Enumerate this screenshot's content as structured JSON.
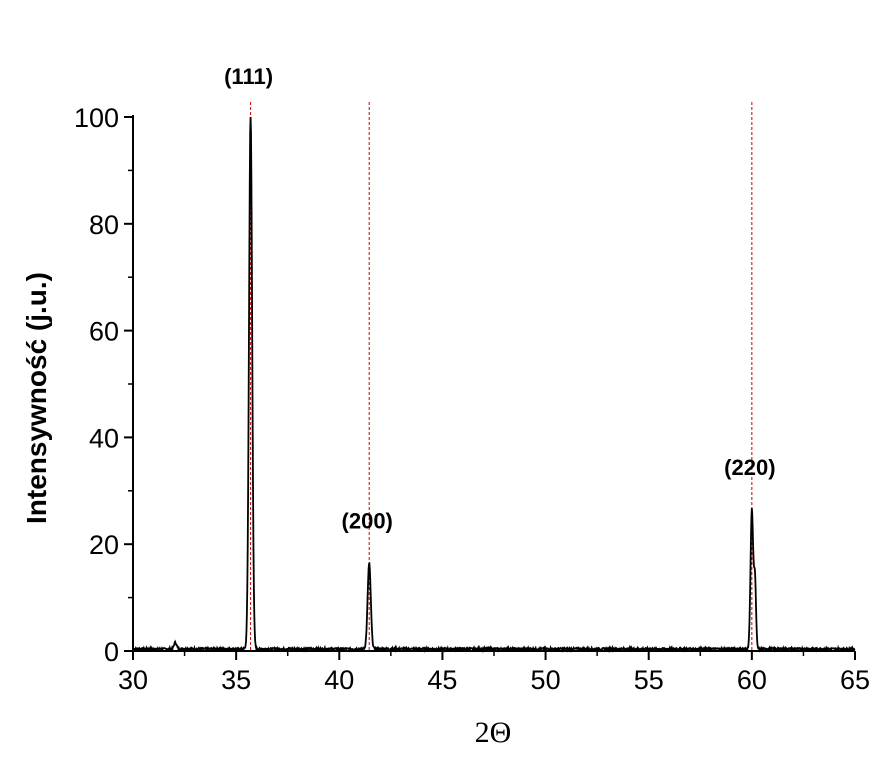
{
  "chart_data": {
    "type": "line",
    "xlabel": "2Θ",
    "ylabel": "Intensywność (j.u.)",
    "xlim": [
      30,
      65
    ],
    "ylim": [
      0,
      100
    ],
    "x_ticks": [
      "30",
      "35",
      "40",
      "45",
      "50",
      "55",
      "60",
      "65"
    ],
    "y_ticks": [
      "0",
      "20",
      "40",
      "60",
      "80",
      "100"
    ],
    "grid": false,
    "line_color": "#000000",
    "reference_line_color": "#cc0000",
    "peaks": [
      {
        "label": "(111)",
        "x": 35.7,
        "y": 100,
        "fwhm": 0.18
      },
      {
        "label": "(200)",
        "x": 41.45,
        "y": 16,
        "fwhm": 0.18
      },
      {
        "label": "(220)",
        "x": 60.0,
        "y": 26,
        "fwhm": 0.15
      },
      {
        "label": "",
        "x": 60.15,
        "y": 13,
        "fwhm": 0.12
      }
    ],
    "minor_features": [
      {
        "x": 32.05,
        "y": 1.2,
        "fwhm": 0.15
      }
    ],
    "reference_lines": [
      35.7,
      41.45,
      60.0
    ],
    "baseline": 0.4
  }
}
